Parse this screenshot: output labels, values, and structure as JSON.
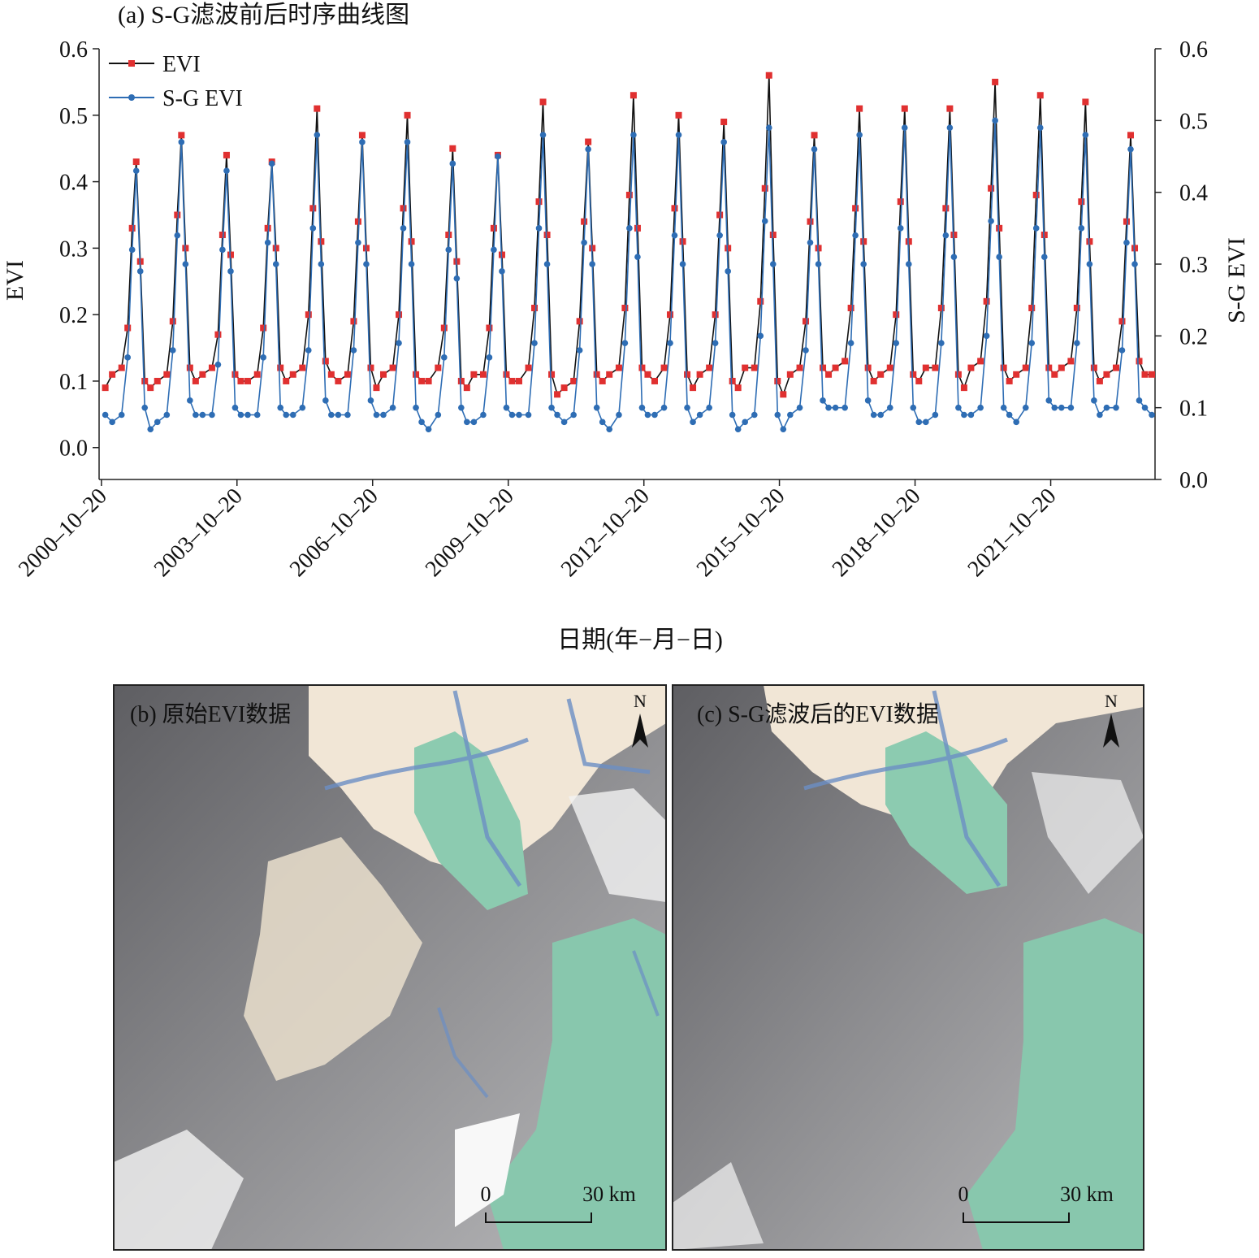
{
  "chart_data": {
    "type": "line",
    "title": "(a) S-G滤波前后时序曲线图",
    "xlabel": "日期(年−月−日)",
    "ylabel": "EVI",
    "y2label": "S-G EVI",
    "x": [
      "2000-11-20",
      "2001-01-15",
      "2001-04-01",
      "2001-05-20",
      "2001-06-25",
      "2001-07-28",
      "2001-08-30",
      "2001-10-05",
      "2001-11-20",
      "2002-01-15",
      "2002-04-01",
      "2002-05-20",
      "2002-06-25",
      "2002-07-28",
      "2002-08-30",
      "2002-10-05",
      "2002-11-20",
      "2003-01-15",
      "2003-04-01",
      "2003-05-20",
      "2003-06-25",
      "2003-07-28",
      "2003-08-30",
      "2003-10-05",
      "2003-11-20",
      "2004-01-15",
      "2004-04-01",
      "2004-05-20",
      "2004-06-25",
      "2004-07-28",
      "2004-08-30",
      "2004-10-05",
      "2004-11-20",
      "2005-01-15",
      "2005-04-01",
      "2005-05-20",
      "2005-06-25",
      "2005-07-28",
      "2005-08-30",
      "2005-10-05",
      "2005-11-20",
      "2006-01-15",
      "2006-04-01",
      "2006-05-20",
      "2006-06-25",
      "2006-07-28",
      "2006-08-30",
      "2006-10-05",
      "2006-11-20",
      "2007-01-15",
      "2007-04-01",
      "2007-05-20",
      "2007-06-25",
      "2007-07-28",
      "2007-08-30",
      "2007-10-05",
      "2007-11-20",
      "2008-01-15",
      "2008-04-01",
      "2008-05-20",
      "2008-06-25",
      "2008-07-28",
      "2008-08-30",
      "2008-10-05",
      "2008-11-20",
      "2009-01-15",
      "2009-04-01",
      "2009-05-20",
      "2009-06-25",
      "2009-07-28",
      "2009-08-30",
      "2009-10-05",
      "2009-11-20",
      "2010-01-15",
      "2010-04-01",
      "2010-05-20",
      "2010-06-25",
      "2010-07-28",
      "2010-08-30",
      "2010-10-05",
      "2010-11-20",
      "2011-01-15",
      "2011-04-01",
      "2011-05-20",
      "2011-06-25",
      "2011-07-28",
      "2011-08-30",
      "2011-10-05",
      "2011-11-20",
      "2012-01-15",
      "2012-04-01",
      "2012-05-20",
      "2012-06-25",
      "2012-07-28",
      "2012-08-30",
      "2012-10-05",
      "2012-11-20",
      "2013-01-15",
      "2013-04-01",
      "2013-05-20",
      "2013-06-25",
      "2013-07-28",
      "2013-08-30",
      "2013-10-05",
      "2013-11-20",
      "2014-01-15",
      "2014-04-01",
      "2014-05-20",
      "2014-06-25",
      "2014-07-28",
      "2014-08-30",
      "2014-10-05",
      "2014-11-20",
      "2015-01-15",
      "2015-04-01",
      "2015-05-20",
      "2015-06-25",
      "2015-07-28",
      "2015-08-30",
      "2015-10-05",
      "2015-11-20",
      "2016-01-15",
      "2016-04-01",
      "2016-05-20",
      "2016-06-25",
      "2016-07-28",
      "2016-08-30",
      "2016-10-05",
      "2016-11-20",
      "2017-01-15",
      "2017-04-01",
      "2017-05-20",
      "2017-06-25",
      "2017-07-28",
      "2017-08-30",
      "2017-10-05",
      "2017-11-20",
      "2018-01-15",
      "2018-04-01",
      "2018-05-20",
      "2018-06-25",
      "2018-07-28",
      "2018-08-30",
      "2018-10-05",
      "2018-11-20",
      "2019-01-15",
      "2019-04-01",
      "2019-05-20",
      "2019-06-25",
      "2019-07-28",
      "2019-08-30",
      "2019-10-05",
      "2019-11-20",
      "2020-01-15",
      "2020-04-01",
      "2020-05-20",
      "2020-06-25",
      "2020-07-28",
      "2020-08-30",
      "2020-10-05",
      "2020-11-20",
      "2021-01-15",
      "2021-04-01",
      "2021-05-20",
      "2021-06-25",
      "2021-07-28",
      "2021-08-30",
      "2021-10-05",
      "2021-11-20",
      "2022-01-15",
      "2022-04-01",
      "2022-05-20",
      "2022-06-25",
      "2022-07-28",
      "2022-08-30",
      "2022-10-05",
      "2022-11-20",
      "2023-01-15",
      "2023-04-01",
      "2023-05-20",
      "2023-06-25",
      "2023-07-28",
      "2023-08-30",
      "2023-10-05",
      "2023-11-20",
      "2024-01-15"
    ],
    "series": [
      {
        "name": "EVI",
        "color": "#e03030",
        "line_color": "#111111",
        "marker": "square",
        "axis": "y",
        "values": [
          0.09,
          0.11,
          0.12,
          0.18,
          0.33,
          0.43,
          0.28,
          0.1,
          0.09,
          0.1,
          0.11,
          0.19,
          0.35,
          0.47,
          0.3,
          0.12,
          0.1,
          0.11,
          0.12,
          0.17,
          0.32,
          0.44,
          0.29,
          0.11,
          0.1,
          0.1,
          0.11,
          0.18,
          0.33,
          0.43,
          0.3,
          0.12,
          0.1,
          0.11,
          0.12,
          0.2,
          0.36,
          0.51,
          0.31,
          0.13,
          0.11,
          0.1,
          0.11,
          0.19,
          0.34,
          0.47,
          0.3,
          0.12,
          0.09,
          0.11,
          0.12,
          0.2,
          0.36,
          0.5,
          0.31,
          0.11,
          0.1,
          0.1,
          0.12,
          0.18,
          0.32,
          0.45,
          0.28,
          0.1,
          0.09,
          0.11,
          0.11,
          0.18,
          0.33,
          0.44,
          0.29,
          0.11,
          0.1,
          0.1,
          0.12,
          0.21,
          0.37,
          0.52,
          0.32,
          0.11,
          0.08,
          0.09,
          0.1,
          0.19,
          0.34,
          0.46,
          0.3,
          0.11,
          0.1,
          0.11,
          0.12,
          0.21,
          0.38,
          0.53,
          0.33,
          0.12,
          0.11,
          0.1,
          0.12,
          0.2,
          0.36,
          0.5,
          0.31,
          0.11,
          0.09,
          0.11,
          0.12,
          0.2,
          0.35,
          0.49,
          0.3,
          0.1,
          0.09,
          0.12,
          0.12,
          0.22,
          0.39,
          0.56,
          0.32,
          0.1,
          0.08,
          0.11,
          0.12,
          0.19,
          0.34,
          0.47,
          0.3,
          0.12,
          0.11,
          0.12,
          0.13,
          0.21,
          0.36,
          0.51,
          0.31,
          0.12,
          0.1,
          0.11,
          0.12,
          0.2,
          0.37,
          0.51,
          0.31,
          0.11,
          0.1,
          0.12,
          0.12,
          0.21,
          0.36,
          0.51,
          0.32,
          0.11,
          0.09,
          0.12,
          0.13,
          0.22,
          0.39,
          0.55,
          0.33,
          0.12,
          0.1,
          0.11,
          0.12,
          0.21,
          0.38,
          0.53,
          0.32,
          0.12,
          0.11,
          0.12,
          0.13,
          0.21,
          0.37,
          0.52,
          0.31,
          0.12,
          0.1,
          0.11,
          0.12,
          0.19,
          0.34,
          0.47,
          0.3,
          0.13,
          0.11,
          0.11
        ]
      },
      {
        "name": "S-G EVI",
        "color": "#2e6db4",
        "line_color": "#2e6db4",
        "marker": "circle",
        "axis": "y2",
        "values": [
          0.09,
          0.08,
          0.09,
          0.17,
          0.32,
          0.43,
          0.29,
          0.1,
          0.07,
          0.08,
          0.09,
          0.18,
          0.34,
          0.47,
          0.3,
          0.11,
          0.09,
          0.09,
          0.09,
          0.16,
          0.32,
          0.43,
          0.29,
          0.1,
          0.09,
          0.09,
          0.09,
          0.17,
          0.33,
          0.44,
          0.3,
          0.1,
          0.09,
          0.09,
          0.1,
          0.18,
          0.35,
          0.48,
          0.3,
          0.11,
          0.09,
          0.09,
          0.09,
          0.18,
          0.33,
          0.47,
          0.3,
          0.11,
          0.09,
          0.09,
          0.1,
          0.19,
          0.35,
          0.47,
          0.3,
          0.1,
          0.08,
          0.07,
          0.09,
          0.17,
          0.32,
          0.44,
          0.28,
          0.1,
          0.08,
          0.08,
          0.09,
          0.17,
          0.32,
          0.45,
          0.29,
          0.1,
          0.09,
          0.09,
          0.09,
          0.19,
          0.35,
          0.48,
          0.3,
          0.1,
          0.09,
          0.08,
          0.09,
          0.18,
          0.33,
          0.46,
          0.3,
          0.1,
          0.08,
          0.07,
          0.09,
          0.19,
          0.35,
          0.48,
          0.31,
          0.1,
          0.09,
          0.09,
          0.1,
          0.19,
          0.34,
          0.48,
          0.3,
          0.1,
          0.08,
          0.09,
          0.1,
          0.19,
          0.34,
          0.47,
          0.29,
          0.09,
          0.07,
          0.08,
          0.09,
          0.2,
          0.36,
          0.49,
          0.3,
          0.09,
          0.07,
          0.09,
          0.1,
          0.18,
          0.33,
          0.46,
          0.3,
          0.11,
          0.1,
          0.1,
          0.1,
          0.19,
          0.34,
          0.48,
          0.3,
          0.11,
          0.09,
          0.09,
          0.1,
          0.19,
          0.35,
          0.49,
          0.3,
          0.1,
          0.08,
          0.08,
          0.09,
          0.19,
          0.34,
          0.49,
          0.31,
          0.1,
          0.09,
          0.09,
          0.1,
          0.2,
          0.36,
          0.5,
          0.31,
          0.1,
          0.09,
          0.08,
          0.1,
          0.19,
          0.35,
          0.49,
          0.31,
          0.11,
          0.1,
          0.1,
          0.1,
          0.19,
          0.35,
          0.48,
          0.3,
          0.11,
          0.09,
          0.1,
          0.1,
          0.18,
          0.33,
          0.46,
          0.3,
          0.11,
          0.1,
          0.09
        ]
      }
    ],
    "xlim": [
      "2000-10-01",
      "2024-02-10"
    ],
    "xticks": [
      {
        "value": "2000-10-20",
        "label": "2000–10–20"
      },
      {
        "value": "2003-10-20",
        "label": "2003–10–20"
      },
      {
        "value": "2006-10-20",
        "label": "2006–10–20"
      },
      {
        "value": "2009-10-20",
        "label": "2009–10–20"
      },
      {
        "value": "2012-10-20",
        "label": "2012–10–20"
      },
      {
        "value": "2015-10-20",
        "label": "2015–10–20"
      },
      {
        "value": "2018-10-20",
        "label": "2018–10–20"
      },
      {
        "value": "2021-10-20",
        "label": "2021–10–20"
      }
    ],
    "ylim": [
      -0.048,
      0.6
    ],
    "yticks": [
      {
        "value": 0,
        "label": "0.0"
      },
      {
        "value": 0.1,
        "label": "0.1"
      },
      {
        "value": 0.2,
        "label": "0.2"
      },
      {
        "value": 0.3,
        "label": "0.3"
      },
      {
        "value": 0.4,
        "label": "0.4"
      },
      {
        "value": 0.5,
        "label": "0.5"
      },
      {
        "value": 0.6,
        "label": "0.6"
      }
    ],
    "y2lim": [
      0,
      0.6
    ],
    "y2ticks": [
      {
        "value": 0,
        "label": "0.0"
      },
      {
        "value": 0.1,
        "label": "0.1"
      },
      {
        "value": 0.2,
        "label": "0.2"
      },
      {
        "value": 0.3,
        "label": "0.3"
      },
      {
        "value": 0.4,
        "label": "0.4"
      },
      {
        "value": 0.5,
        "label": "0.5"
      },
      {
        "value": 0.6,
        "label": "0.6"
      }
    ],
    "legend": "upper-left",
    "grid": false
  },
  "maps": [
    {
      "title": "(b) 原始EVI数据",
      "north": "N",
      "scale_start": "0",
      "scale_end": "30 km"
    },
    {
      "title": "(c) S-G滤波后的EVI数据",
      "north": "N",
      "scale_start": "0",
      "scale_end": "30 km"
    }
  ]
}
